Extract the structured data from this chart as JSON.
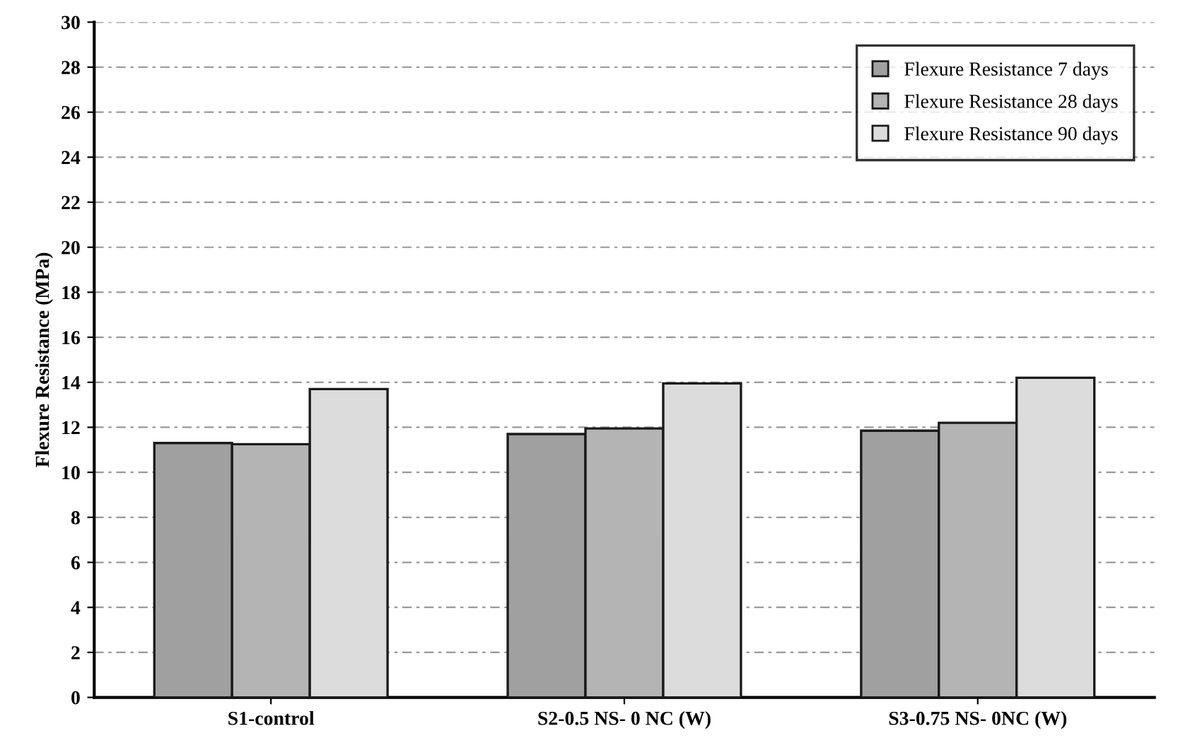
{
  "chart_data": {
    "type": "bar",
    "ylabel": "Flexure Resistance (MPa)",
    "categories": [
      "S1-control",
      "S2-0.5 NS- 0 NC (W)",
      "S3-0.75 NS- 0NC (W)"
    ],
    "series": [
      {
        "name": "Flexure Resistance 7 days",
        "color": "#a0a0a0",
        "values": [
          11.3,
          11.7,
          11.85
        ]
      },
      {
        "name": "Flexure Resistance 28 days",
        "color": "#b4b4b4",
        "values": [
          11.25,
          11.95,
          12.2
        ]
      },
      {
        "name": "Flexure Resistance 90 days",
        "color": "#dcdcdc",
        "values": [
          13.7,
          13.95,
          14.2
        ]
      }
    ],
    "ylim": [
      0,
      30
    ],
    "yticks": [
      0,
      2,
      4,
      6,
      8,
      10,
      12,
      14,
      16,
      18,
      20,
      22,
      24,
      26,
      28,
      30
    ],
    "grid": "y",
    "legend": "top right"
  }
}
